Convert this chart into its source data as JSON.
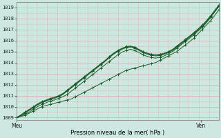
{
  "xlabel": "Pression niveau de la mer( hPa )",
  "ylim": [
    1008.8,
    1019.5
  ],
  "xlim": [
    0,
    1
  ],
  "yticks": [
    1009,
    1010,
    1011,
    1012,
    1013,
    1014,
    1015,
    1016,
    1017,
    1018,
    1019
  ],
  "xtick_labels": [
    "Meu",
    "Ven"
  ],
  "xtick_positions": [
    0.0,
    0.91
  ],
  "bg_color": "#cce8e0",
  "grid_color": "#ddb8bc",
  "line_color": "#1a5c2a",
  "n_points": 49,
  "lines": [
    [
      1009.0,
      1009.1,
      1009.2,
      1009.4,
      1009.6,
      1009.8,
      1010.0,
      1010.1,
      1010.2,
      1010.3,
      1010.4,
      1010.5,
      1010.6,
      1010.7,
      1010.9,
      1011.1,
      1011.3,
      1011.5,
      1011.7,
      1011.9,
      1012.1,
      1012.3,
      1012.5,
      1012.7,
      1012.9,
      1013.1,
      1013.3,
      1013.4,
      1013.5,
      1013.6,
      1013.7,
      1013.8,
      1013.9,
      1014.0,
      1014.2,
      1014.4,
      1014.6,
      1014.8,
      1015.0,
      1015.3,
      1015.6,
      1015.9,
      1016.2,
      1016.6,
      1017.0,
      1017.4,
      1017.8,
      1018.3,
      1018.8
    ],
    [
      1009.0,
      1009.15,
      1009.3,
      1009.5,
      1009.75,
      1010.0,
      1010.2,
      1010.35,
      1010.5,
      1010.6,
      1010.75,
      1010.9,
      1011.1,
      1011.4,
      1011.7,
      1012.0,
      1012.3,
      1012.6,
      1012.9,
      1013.2,
      1013.5,
      1013.8,
      1014.1,
      1014.4,
      1014.7,
      1014.95,
      1015.1,
      1015.2,
      1015.1,
      1014.9,
      1014.7,
      1014.55,
      1014.45,
      1014.4,
      1014.5,
      1014.6,
      1014.8,
      1015.0,
      1015.3,
      1015.6,
      1015.9,
      1016.2,
      1016.5,
      1016.85,
      1017.2,
      1017.6,
      1018.1,
      1018.6,
      1019.1
    ],
    [
      1009.0,
      1009.2,
      1009.4,
      1009.65,
      1009.9,
      1010.15,
      1010.35,
      1010.5,
      1010.65,
      1010.75,
      1010.9,
      1011.1,
      1011.4,
      1011.7,
      1012.0,
      1012.3,
      1012.6,
      1012.9,
      1013.2,
      1013.5,
      1013.8,
      1014.1,
      1014.45,
      1014.75,
      1015.0,
      1015.2,
      1015.35,
      1015.4,
      1015.3,
      1015.1,
      1014.9,
      1014.75,
      1014.65,
      1014.6,
      1014.65,
      1014.75,
      1014.9,
      1015.1,
      1015.4,
      1015.7,
      1016.0,
      1016.3,
      1016.6,
      1016.95,
      1017.3,
      1017.7,
      1018.15,
      1018.65,
      1019.15
    ],
    [
      1009.0,
      1009.2,
      1009.45,
      1009.7,
      1009.95,
      1010.2,
      1010.4,
      1010.55,
      1010.7,
      1010.8,
      1010.95,
      1011.15,
      1011.45,
      1011.75,
      1012.05,
      1012.35,
      1012.65,
      1012.95,
      1013.25,
      1013.55,
      1013.85,
      1014.15,
      1014.5,
      1014.8,
      1015.05,
      1015.25,
      1015.4,
      1015.45,
      1015.35,
      1015.15,
      1014.95,
      1014.8,
      1014.7,
      1014.65,
      1014.7,
      1014.8,
      1014.95,
      1015.15,
      1015.45,
      1015.75,
      1016.05,
      1016.35,
      1016.65,
      1017.0,
      1017.35,
      1017.75,
      1018.2,
      1018.7,
      1019.2
    ],
    [
      1009.0,
      1009.25,
      1009.5,
      1009.75,
      1010.0,
      1010.25,
      1010.45,
      1010.6,
      1010.75,
      1010.85,
      1011.0,
      1011.2,
      1011.5,
      1011.8,
      1012.1,
      1012.4,
      1012.7,
      1013.0,
      1013.3,
      1013.6,
      1013.9,
      1014.2,
      1014.55,
      1014.85,
      1015.1,
      1015.3,
      1015.45,
      1015.5,
      1015.4,
      1015.2,
      1015.0,
      1014.85,
      1014.75,
      1014.7,
      1014.75,
      1014.85,
      1015.0,
      1015.2,
      1015.5,
      1015.8,
      1016.1,
      1016.4,
      1016.7,
      1017.05,
      1017.4,
      1017.8,
      1018.25,
      1018.75,
      1019.25
    ]
  ]
}
